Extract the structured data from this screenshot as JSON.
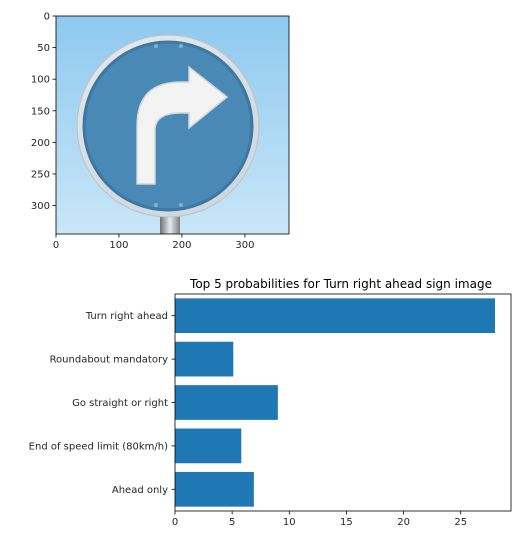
{
  "chart_data": [
    {
      "type": "image",
      "content": "blue circular traffic sign with white arrow pointing right (turn right ahead)",
      "x_ticks": [
        0,
        100,
        200,
        300
      ],
      "y_ticks": [
        0,
        50,
        100,
        150,
        200,
        250,
        300
      ],
      "xlim": [
        0,
        370
      ],
      "ylim": [
        345,
        0
      ],
      "colors": {
        "sky_top": "#8ec9ef",
        "sky_bottom": "#c9e6f8",
        "sign_blue": "#4a89b5",
        "arrow": "#f3f3f3"
      }
    },
    {
      "type": "bar",
      "orientation": "horizontal",
      "title": "Top 5 probabilities for Turn right ahead sign image",
      "categories": [
        "Turn right ahead",
        "Roundabout mandatory",
        "Go straight or right",
        "End of speed limit (80km/h)",
        "Ahead only"
      ],
      "values": [
        28.0,
        5.1,
        9.0,
        5.8,
        6.9
      ],
      "xlim": [
        0,
        29.4
      ],
      "x_ticks": [
        0,
        5,
        10,
        15,
        20,
        25
      ],
      "color": "#1f77b4"
    }
  ]
}
